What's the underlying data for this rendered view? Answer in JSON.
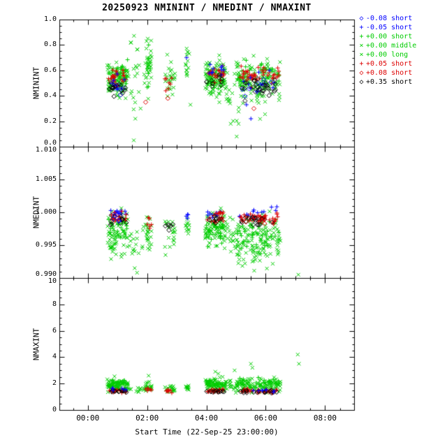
{
  "title": "20250923 NMININT / NMEDINT / NMAXINT",
  "xlabel": "Start Time (22-Sep-25 23:00:00)",
  "series": [
    {
      "label": "-0.08 short",
      "marker": "diamond",
      "glyph": "◇",
      "color": "#0000ff"
    },
    {
      "label": "-0.05 short",
      "marker": "plus",
      "glyph": "+",
      "color": "#0000ff"
    },
    {
      "label": "+0.00 short",
      "marker": "plus",
      "glyph": "+",
      "color": "#00cc00"
    },
    {
      "label": "+0.00 middle",
      "marker": "cross",
      "glyph": "×",
      "color": "#00cc00"
    },
    {
      "label": "+0.00 long",
      "marker": "cross",
      "glyph": "×",
      "color": "#00cc00"
    },
    {
      "label": "+0.05 short",
      "marker": "plus",
      "glyph": "+",
      "color": "#dd0000"
    },
    {
      "label": "+0.08 short",
      "marker": "diamond",
      "glyph": "◇",
      "color": "#dd0000"
    },
    {
      "label": "+0.35 short",
      "marker": "diamond",
      "glyph": "◇",
      "color": "#000000"
    }
  ],
  "axes": {
    "xlim_hours": [
      -0.96,
      8.98
    ],
    "x_major_hours": [
      0,
      2,
      4,
      6,
      8
    ],
    "x_tick_labels": [
      "00:00",
      "02:00",
      "04:00",
      "06:00",
      "08:00"
    ],
    "x_minor_step": 0.5
  },
  "chart_data": [
    {
      "name": "NMININT",
      "type": "scatter",
      "ylabel": "NMININT",
      "ylim": [
        0.0,
        1.0
      ],
      "yticks": [
        0.0,
        0.2,
        0.4,
        0.6,
        0.8,
        1.0
      ],
      "ytick_labels": [
        "0.0",
        "0.2",
        "0.4",
        "0.6",
        "0.8",
        "1.0"
      ],
      "y_minor_step": 0.05,
      "clusters": [
        [
          3,
          0.65,
          1.35,
          0.54,
          0.05,
          70
        ],
        [
          3,
          0.68,
          1.3,
          0.46,
          0.06,
          25
        ],
        [
          2,
          0.7,
          1.35,
          0.58,
          0.035,
          30
        ],
        [
          4,
          1.35,
          1.95,
          0.55,
          0.16,
          20
        ],
        [
          3,
          1.95,
          2.15,
          0.66,
          0.1,
          26
        ],
        [
          2,
          1.97,
          2.12,
          0.57,
          0.07,
          8
        ],
        [
          3,
          2.6,
          2.95,
          0.5,
          0.05,
          20
        ],
        [
          4,
          2.62,
          2.9,
          0.62,
          0.08,
          6
        ],
        [
          3,
          3.3,
          3.42,
          0.63,
          0.05,
          14
        ],
        [
          3,
          3.95,
          4.65,
          0.57,
          0.06,
          80
        ],
        [
          2,
          4.0,
          4.6,
          0.52,
          0.05,
          28
        ],
        [
          4,
          4.1,
          4.6,
          0.42,
          0.07,
          14
        ],
        [
          3,
          4.65,
          5.1,
          0.42,
          0.1,
          20
        ],
        [
          3,
          5.0,
          6.5,
          0.52,
          0.07,
          115
        ],
        [
          2,
          5.05,
          6.45,
          0.58,
          0.05,
          38
        ],
        [
          4,
          5.2,
          6.0,
          0.38,
          0.06,
          14
        ],
        [
          5,
          0.7,
          1.3,
          0.55,
          0.03,
          22
        ],
        [
          5,
          2.6,
          2.9,
          0.5,
          0.03,
          6
        ],
        [
          5,
          4.0,
          4.6,
          0.57,
          0.03,
          24
        ],
        [
          5,
          5.1,
          6.45,
          0.56,
          0.035,
          45
        ],
        [
          6,
          0.72,
          1.1,
          0.5,
          0.03,
          6
        ],
        [
          1,
          0.7,
          1.3,
          0.5,
          0.04,
          10
        ],
        [
          1,
          4.0,
          4.6,
          0.6,
          0.035,
          10
        ],
        [
          1,
          5.1,
          6.4,
          0.5,
          0.05,
          12
        ],
        [
          0,
          0.8,
          1.2,
          0.47,
          0.03,
          5
        ],
        [
          0,
          5.2,
          6.3,
          0.46,
          0.035,
          8
        ],
        [
          7,
          0.7,
          1.3,
          0.46,
          0.025,
          14
        ],
        [
          7,
          4.0,
          4.6,
          0.52,
          0.03,
          10
        ],
        [
          7,
          5.1,
          6.45,
          0.46,
          0.035,
          28
        ]
      ],
      "outliers": [
        [
          3,
          1.55,
          0.05
        ],
        [
          3,
          5.02,
          0.08
        ],
        [
          4,
          1.6,
          0.22
        ],
        [
          4,
          1.78,
          0.3
        ],
        [
          3,
          4.82,
          0.18
        ],
        [
          3,
          3.46,
          0.33
        ],
        [
          3,
          2.02,
          0.85
        ],
        [
          3,
          1.98,
          0.83
        ],
        [
          3,
          1.45,
          0.82
        ],
        [
          2,
          2.05,
          0.8
        ],
        [
          6,
          1.95,
          0.35
        ],
        [
          6,
          2.7,
          0.38
        ],
        [
          6,
          5.6,
          0.3
        ],
        [
          1,
          5.35,
          0.33
        ],
        [
          1,
          5.5,
          0.22
        ],
        [
          1,
          3.33,
          0.7
        ],
        [
          5,
          2.63,
          0.44
        ],
        [
          7,
          5.3,
          0.36
        ]
      ]
    },
    {
      "name": "NMEDINT",
      "type": "scatter",
      "ylabel": "NMEDINT",
      "ylim": [
        0.99,
        1.01
      ],
      "yticks": [
        0.99,
        0.995,
        1.0,
        1.005,
        1.01
      ],
      "ytick_labels": [
        "0.990",
        "0.995",
        "1.000",
        "1.005",
        "1.010"
      ],
      "y_minor_step": 0.001,
      "clusters": [
        [
          3,
          0.65,
          1.35,
          0.9965,
          0.0018,
          70
        ],
        [
          2,
          0.7,
          1.35,
          0.998,
          0.001,
          25
        ],
        [
          4,
          1.35,
          1.95,
          0.9955,
          0.0015,
          18
        ],
        [
          3,
          1.95,
          2.15,
          0.9965,
          0.0013,
          24
        ],
        [
          3,
          2.6,
          2.95,
          0.997,
          0.0012,
          20
        ],
        [
          3,
          3.3,
          3.42,
          0.998,
          0.0008,
          12
        ],
        [
          3,
          3.95,
          4.65,
          0.9975,
          0.0013,
          80
        ],
        [
          2,
          4.0,
          4.6,
          0.997,
          0.001,
          25
        ],
        [
          3,
          4.65,
          5.1,
          0.996,
          0.0013,
          20
        ],
        [
          3,
          5.0,
          6.5,
          0.996,
          0.0018,
          110
        ],
        [
          2,
          5.05,
          6.45,
          0.9965,
          0.0012,
          35
        ],
        [
          4,
          5.2,
          6.2,
          0.9945,
          0.001,
          15
        ],
        [
          1,
          0.75,
          1.3,
          1.0,
          0.0004,
          12
        ],
        [
          5,
          0.75,
          1.3,
          0.9992,
          0.0004,
          20
        ],
        [
          7,
          0.75,
          1.3,
          0.9988,
          0.0004,
          12
        ],
        [
          5,
          1.95,
          2.15,
          0.9985,
          0.0005,
          6
        ],
        [
          7,
          2.6,
          2.9,
          0.998,
          0.0004,
          6
        ],
        [
          1,
          3.3,
          3.42,
          0.9995,
          0.0003,
          4
        ],
        [
          1,
          4.0,
          4.6,
          0.9998,
          0.0004,
          10
        ],
        [
          5,
          4.0,
          4.6,
          0.9992,
          0.0004,
          22
        ],
        [
          7,
          4.0,
          4.6,
          0.9988,
          0.0003,
          8
        ],
        [
          1,
          5.1,
          6.45,
          0.9998,
          0.0005,
          14
        ],
        [
          5,
          5.1,
          6.45,
          0.9992,
          0.0004,
          40
        ],
        [
          7,
          5.1,
          6.45,
          0.9988,
          0.0004,
          20
        ],
        [
          6,
          5.3,
          6.2,
          0.999,
          0.0004,
          8
        ],
        [
          0,
          0.8,
          1.2,
          0.9992,
          0.0003,
          5
        ]
      ],
      "outliers": [
        [
          3,
          7.1,
          0.9905
        ],
        [
          4,
          1.58,
          0.9915
        ],
        [
          4,
          1.66,
          0.9908
        ],
        [
          3,
          2.62,
          0.9935
        ],
        [
          3,
          5.3,
          0.9922
        ],
        [
          3,
          5.55,
          0.9925
        ]
      ]
    },
    {
      "name": "NMAXINT",
      "type": "scatter",
      "ylabel": "NMAXINT",
      "ylim": [
        0,
        10
      ],
      "yticks": [
        0,
        2,
        4,
        6,
        8,
        10
      ],
      "ytick_labels": [
        "0",
        "2",
        "4",
        "6",
        "8",
        "10"
      ],
      "y_minor_step": 0.5,
      "clusters": [
        [
          3,
          0.65,
          1.35,
          1.85,
          0.2,
          80
        ],
        [
          2,
          0.7,
          1.35,
          2.0,
          0.15,
          25
        ],
        [
          4,
          1.35,
          1.95,
          1.6,
          0.15,
          15
        ],
        [
          3,
          1.95,
          2.15,
          1.75,
          0.2,
          22
        ],
        [
          3,
          2.6,
          2.95,
          1.65,
          0.15,
          20
        ],
        [
          3,
          3.3,
          3.42,
          1.7,
          0.12,
          10
        ],
        [
          3,
          3.95,
          4.65,
          1.9,
          0.22,
          80
        ],
        [
          2,
          4.0,
          4.6,
          2.1,
          0.15,
          20
        ],
        [
          3,
          4.65,
          5.1,
          1.8,
          0.25,
          20
        ],
        [
          3,
          5.0,
          6.5,
          1.9,
          0.25,
          110
        ],
        [
          2,
          5.05,
          6.45,
          2.1,
          0.18,
          30
        ],
        [
          5,
          0.7,
          1.3,
          1.45,
          0.07,
          25
        ],
        [
          7,
          0.7,
          1.3,
          1.4,
          0.06,
          12
        ],
        [
          5,
          1.95,
          2.15,
          1.5,
          0.06,
          6
        ],
        [
          5,
          2.6,
          2.9,
          1.45,
          0.06,
          8
        ],
        [
          5,
          4.0,
          4.6,
          1.45,
          0.07,
          25
        ],
        [
          7,
          4.0,
          4.6,
          1.4,
          0.05,
          10
        ],
        [
          5,
          5.1,
          6.45,
          1.45,
          0.07,
          40
        ],
        [
          7,
          5.1,
          6.45,
          1.4,
          0.06,
          18
        ],
        [
          1,
          5.1,
          6.4,
          1.5,
          0.08,
          8
        ],
        [
          1,
          0.8,
          1.3,
          1.55,
          0.07,
          6
        ]
      ],
      "outliers": [
        [
          3,
          4.3,
          2.9
        ],
        [
          3,
          4.95,
          3.0
        ],
        [
          3,
          5.5,
          3.5
        ],
        [
          3,
          5.55,
          3.2
        ],
        [
          4,
          7.08,
          4.2
        ],
        [
          4,
          7.12,
          3.5
        ],
        [
          3,
          2.05,
          2.6
        ],
        [
          3,
          0.9,
          2.55
        ],
        [
          3,
          4.4,
          2.75
        ]
      ]
    }
  ]
}
